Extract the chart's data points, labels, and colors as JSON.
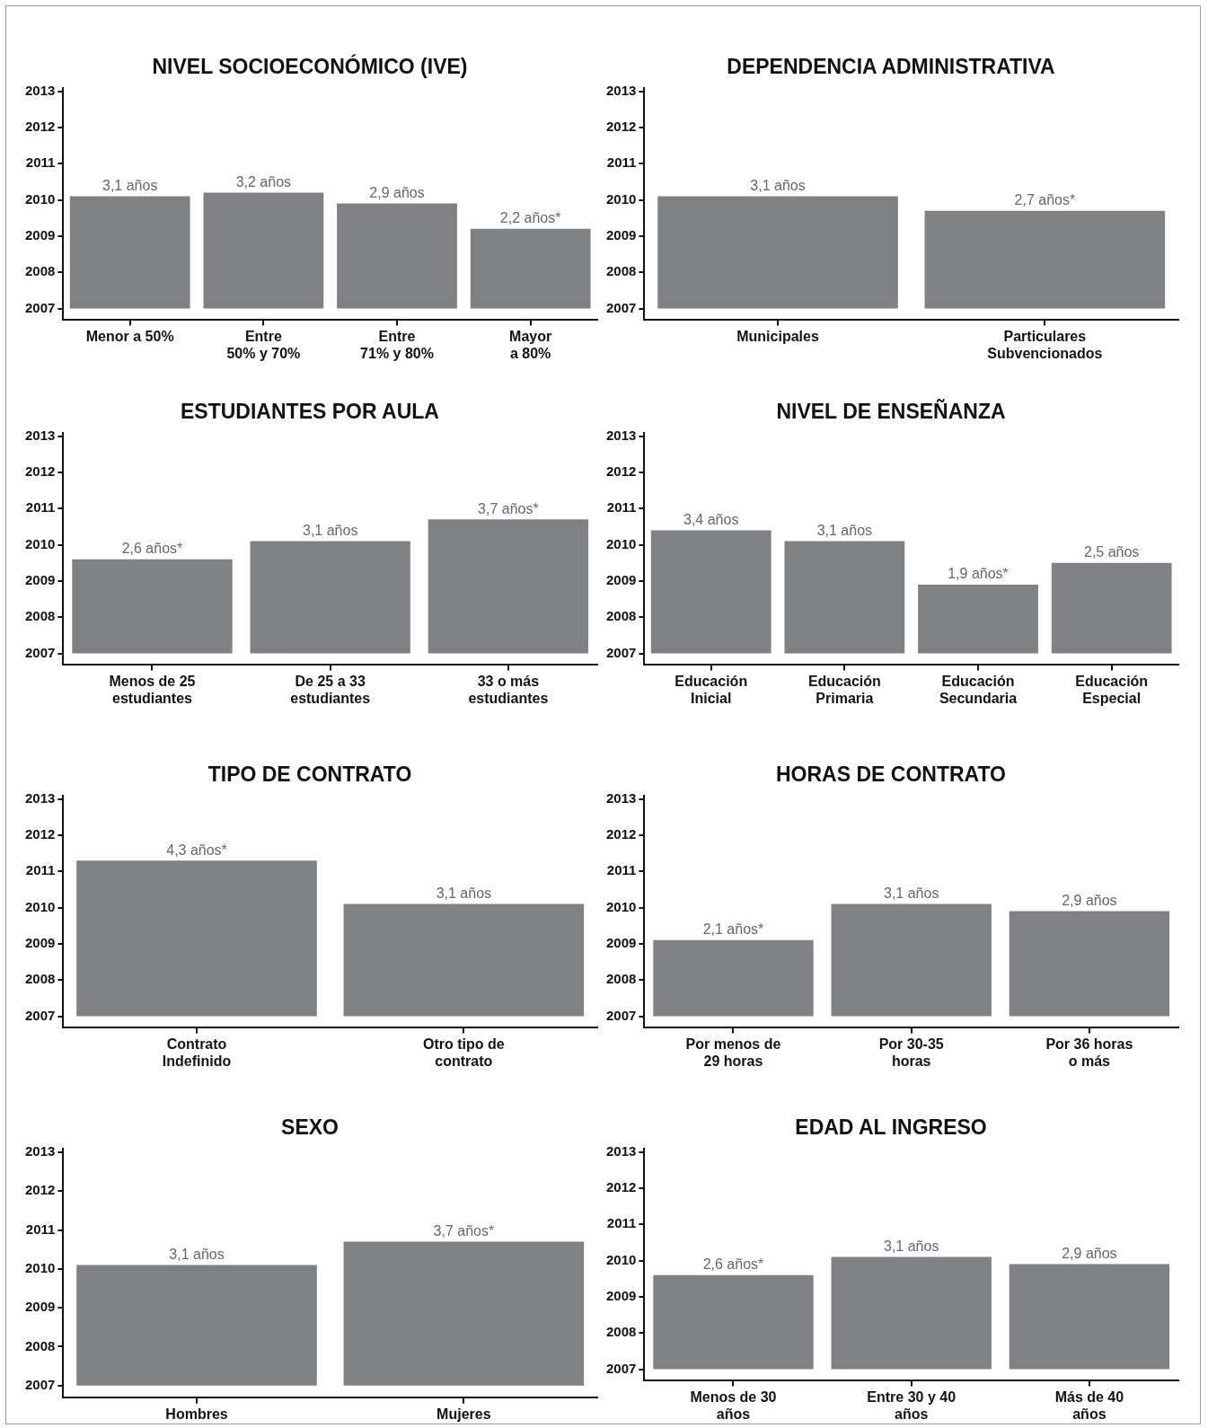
{
  "chart_data": [
    {
      "type": "bar",
      "title": "NIVEL SOCIOECONÓMICO (IVE)",
      "categories": [
        "Menor a 50%",
        "Entre\n50% y 70%",
        "Entre\n71% y 80%",
        "Mayor\na 80%"
      ],
      "base": [
        2007,
        2007,
        2007,
        2007
      ],
      "values": [
        3.1,
        3.2,
        2.9,
        2.2
      ],
      "value_labels": [
        "3,1 años",
        "3,2 años",
        "2,9 años",
        "2,2 años*"
      ],
      "color": "#808184",
      "ylim": [
        2006.7,
        2013.1
      ],
      "yticks": [
        2007,
        2008,
        2009,
        2010,
        2011,
        2012,
        2013
      ]
    },
    {
      "type": "bar",
      "title": "DEPENDENCIA ADMINISTRATIVA",
      "categories": [
        "Municipales",
        "Particulares\nSubvencionados"
      ],
      "base": [
        2007,
        2007
      ],
      "values": [
        3.1,
        2.7
      ],
      "value_labels": [
        "3,1 años",
        "2,7 años*"
      ],
      "color": "#808184",
      "ylim": [
        2006.7,
        2013.1
      ],
      "yticks": [
        2007,
        2008,
        2009,
        2010,
        2011,
        2012,
        2013
      ]
    },
    {
      "type": "bar",
      "title": "ESTUDIANTES POR AULA",
      "categories": [
        "Menos de 25\nestudiantes",
        "De 25 a 33\nestudiantes",
        "33 o más\nestudiantes"
      ],
      "base": [
        2007,
        2007,
        2007
      ],
      "values": [
        2.6,
        3.1,
        3.7
      ],
      "value_labels": [
        "2,6 años*",
        "3,1 años",
        "3,7 años*"
      ],
      "color": "#808184",
      "ylim": [
        2006.7,
        2013.1
      ],
      "yticks": [
        2007,
        2008,
        2009,
        2010,
        2011,
        2012,
        2013
      ]
    },
    {
      "type": "bar",
      "title": "NIVEL DE ENSEÑANZA",
      "categories": [
        "Educación\nInicial",
        "Educación\nPrimaria",
        "Educación\nSecundaria",
        "Educación\nEspecial"
      ],
      "base": [
        2007,
        2007,
        2007,
        2007
      ],
      "values": [
        3.4,
        3.1,
        1.9,
        2.5
      ],
      "value_labels": [
        "3,4 años",
        "3,1 años",
        "1,9 años*",
        "2,5 años"
      ],
      "color": "#808184",
      "ylim": [
        2006.7,
        2013.1
      ],
      "yticks": [
        2007,
        2008,
        2009,
        2010,
        2011,
        2012,
        2013
      ]
    },
    {
      "type": "bar",
      "title": "TIPO DE CONTRATO",
      "categories": [
        "Contrato\nIndefinido",
        "Otro tipo de\ncontrato"
      ],
      "base": [
        2007,
        2007
      ],
      "values": [
        4.3,
        3.1
      ],
      "value_labels": [
        "4,3 años*",
        "3,1 años"
      ],
      "color": "#808184",
      "ylim": [
        2006.7,
        2013.1
      ],
      "yticks": [
        2007,
        2008,
        2009,
        2010,
        2011,
        2012,
        2013
      ]
    },
    {
      "type": "bar",
      "title": "HORAS DE CONTRATO",
      "categories": [
        "Por menos de\n29 horas",
        "Por 30-35\nhoras",
        "Por 36 horas\no más"
      ],
      "base": [
        2007,
        2007,
        2007
      ],
      "values": [
        2.1,
        3.1,
        2.9
      ],
      "value_labels": [
        "2,1 años*",
        "3,1 años",
        "2,9 años"
      ],
      "color": "#808184",
      "ylim": [
        2006.7,
        2013.1
      ],
      "yticks": [
        2007,
        2008,
        2009,
        2010,
        2011,
        2012,
        2013
      ]
    },
    {
      "type": "bar",
      "title": "SEXO",
      "categories": [
        "Hombres",
        "Mujeres"
      ],
      "base": [
        2007,
        2007
      ],
      "values": [
        3.1,
        3.7
      ],
      "value_labels": [
        "3,1 años",
        "3,7 años*"
      ],
      "color": "#808184",
      "ylim": [
        2006.7,
        2013.1
      ],
      "yticks": [
        2007,
        2008,
        2009,
        2010,
        2011,
        2012,
        2013
      ]
    },
    {
      "type": "bar",
      "title": "EDAD AL INGRESO",
      "categories": [
        "Menos de 30\naños",
        "Entre 30 y 40\naños",
        "Más de 40\naños"
      ],
      "base": [
        2007,
        2007,
        2007
      ],
      "values": [
        2.6,
        3.1,
        2.9
      ],
      "value_labels": [
        "2,6 años*",
        "3,1 años",
        "2,9 años"
      ],
      "color": "#808184",
      "ylim": [
        2006.7,
        2013.1
      ],
      "yticks": [
        2007,
        2008,
        2009,
        2010,
        2011,
        2012,
        2013
      ]
    }
  ]
}
